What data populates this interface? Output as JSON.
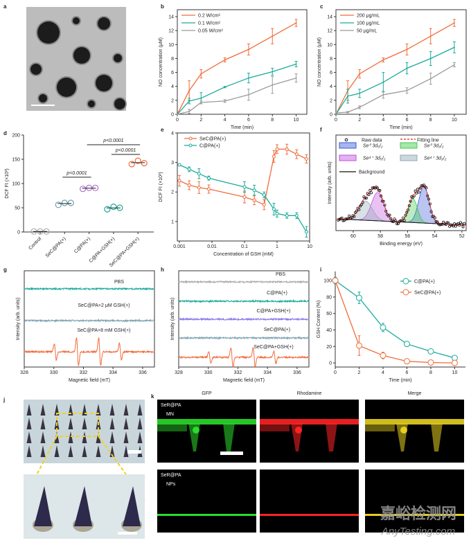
{
  "panel_labels": [
    "a",
    "b",
    "c",
    "d",
    "e",
    "f",
    "g",
    "h",
    "i",
    "j",
    "k"
  ],
  "colors": {
    "orange": "#f26b3a",
    "teal": "#1aaa9a",
    "grey": "#9a9a9a"
  },
  "chart_data": [
    {
      "panel": "b",
      "type": "line",
      "title": "",
      "xlabel": "Time (min)",
      "ylabel": "NO concentration (μM)",
      "xlim": [
        0,
        10.9
      ],
      "ylim": [
        0,
        15
      ],
      "xticks": [
        "0",
        "2",
        "4",
        "6",
        "8",
        "10"
      ],
      "yticks": [
        "0",
        "2",
        "4",
        "6",
        "8",
        "10",
        "12",
        "14"
      ],
      "legend_position": "top-left",
      "x": [
        0,
        1,
        2,
        4,
        6,
        8,
        10
      ],
      "series": [
        {
          "name": "0.2 W/cm²",
          "color": "#f26b3a",
          "y": [
            0,
            3.4,
            5.8,
            7.8,
            9.3,
            11.2,
            13.1
          ],
          "err": [
            0,
            1.4,
            0.6,
            0.3,
            0.8,
            1.1,
            0.5
          ]
        },
        {
          "name": "0.1 W/cm²",
          "color": "#1aaa9a",
          "y": [
            0,
            1.9,
            2.3,
            3.9,
            5.2,
            6.1,
            7.2
          ],
          "err": [
            0,
            0.4,
            0.8,
            0.1,
            0.7,
            0.5,
            0.4
          ]
        },
        {
          "name": "0.05 W/cm²",
          "color": "#9a9a9a",
          "y": [
            0,
            0.4,
            1.7,
            1.9,
            2.8,
            4.2,
            5.2
          ],
          "err": [
            0,
            0.3,
            0.2,
            0.2,
            0.8,
            1.2,
            0.6
          ]
        }
      ]
    },
    {
      "panel": "c",
      "type": "line",
      "title": "",
      "xlabel": "Time (min)",
      "ylabel": "NO concentration (μM)",
      "xlim": [
        0,
        11
      ],
      "ylim": [
        0,
        15
      ],
      "xticks": [
        "0",
        "2",
        "4",
        "6",
        "8",
        "10"
      ],
      "yticks": [
        "0",
        "2",
        "4",
        "6",
        "8",
        "10",
        "12",
        "14"
      ],
      "legend_position": "top-left",
      "x": [
        0,
        1,
        2,
        4,
        6,
        8,
        10
      ],
      "series": [
        {
          "name": "200 μg/mL",
          "color": "#f26b3a",
          "y": [
            0,
            3.4,
            5.8,
            7.8,
            9.3,
            11.2,
            13.1
          ],
          "err": [
            0,
            1.4,
            0.6,
            0.3,
            0.8,
            1.1,
            0.5
          ]
        },
        {
          "name": "100 μg/mL",
          "color": "#1aaa9a",
          "y": [
            0,
            2.6,
            3.0,
            4.6,
            6.6,
            8.0,
            9.6
          ],
          "err": [
            0,
            1.0,
            0.6,
            1.4,
            0.8,
            1.0,
            0.8
          ]
        },
        {
          "name": "50 μg/mL",
          "color": "#9a9a9a",
          "y": [
            0.2,
            0.3,
            1.0,
            2.8,
            3.4,
            5.1,
            7.1
          ],
          "err": [
            0,
            0.1,
            0.2,
            0.5,
            0.4,
            0.8,
            0.3
          ]
        }
      ]
    },
    {
      "panel": "d",
      "type": "scatter",
      "title": "",
      "xlabel": "",
      "ylabel": "DCF FI (×10³)",
      "ylim": [
        0,
        200
      ],
      "yticks": [
        "0",
        "50",
        "100",
        "150",
        "200"
      ],
      "categories": [
        "Control",
        "SeC@PA(+)",
        "C@PA(+)",
        "C@PA+GSH(+)",
        "SeC@PA+GSH(+)"
      ],
      "colors": [
        "#aaaaaa",
        "#6f9fb0",
        "#b070d0",
        "#1aaa9a",
        "#f26b3a"
      ],
      "values": [
        [
          1,
          1,
          1
        ],
        [
          56,
          60,
          60
        ],
        [
          89,
          91,
          91
        ],
        [
          47,
          52,
          50
        ],
        [
          140,
          147,
          142
        ]
      ],
      "annotations": [
        {
          "text": "p<0.0001",
          "from": 1,
          "to": 2,
          "y": 113
        },
        {
          "text": "p<0.0001",
          "from": 2,
          "to": 4,
          "y": 180
        },
        {
          "text": "p<0.0001",
          "from": 3,
          "to": 4,
          "y": 160
        }
      ]
    },
    {
      "panel": "e",
      "type": "line",
      "title": "",
      "xlabel": "Concentration of GSH (mM)",
      "ylabel": "DCF FI (×10³)",
      "xscale": "log",
      "xlim": [
        0.000863,
        10
      ],
      "ylim": [
        0.34,
        4
      ],
      "xticks": [
        "0.001",
        "0.01",
        "0.1",
        "1",
        "10"
      ],
      "yticks": [
        "1",
        "2",
        "3",
        "4"
      ],
      "legend_position": "top-left",
      "x": [
        0.001,
        0.002,
        0.004,
        0.008,
        0.1,
        0.2,
        0.4,
        0.8,
        1,
        2,
        4,
        8
      ],
      "series": [
        {
          "name": "SeC@PA(+)",
          "color": "#f26b3a",
          "y": [
            2.38,
            2.23,
            2.15,
            2.1,
            1.83,
            1.72,
            1.57,
            3.2,
            3.45,
            3.45,
            3.28,
            3.12
          ],
          "err": [
            0.18,
            0.15,
            0.2,
            0.14,
            0.2,
            0.15,
            0.17,
            0.2,
            0.15,
            0.17,
            0.15,
            0.14
          ]
        },
        {
          "name": "C@PA(+)",
          "color": "#1aaa9a",
          "y": [
            2.92,
            2.77,
            2.62,
            2.47,
            2.17,
            2.06,
            1.9,
            1.42,
            1.27,
            1.2,
            1.2,
            0.65
          ],
          "err": [
            0.03,
            0.08,
            0.17,
            0.07,
            0.18,
            0.17,
            0.1,
            0.2,
            0.12,
            0.09,
            0.1,
            0.18
          ]
        }
      ]
    },
    {
      "panel": "f",
      "type": "line",
      "title": "",
      "xlabel": "Binding energy (eV)",
      "ylabel": "Intensity (arb. units)",
      "xlim": [
        61.27,
        51.69
      ],
      "ylim": [
        0,
        1
      ],
      "xticks": [
        "60",
        "58",
        "56",
        "54",
        "52"
      ],
      "yticks": [],
      "legend": {
        "raw": "Raw data",
        "fit": "Fitting line",
        "background": "Background"
      },
      "peaks": [
        {
          "name": "Se⁰ 3d₅/₂",
          "center": 54.8,
          "height": 0.85,
          "width": 0.38,
          "color": "#3a5ad8"
        },
        {
          "name": "Se⁰ 3d₃/₂",
          "center": 55.6,
          "height": 0.55,
          "width": 0.33,
          "color": "#3cc84a"
        },
        {
          "name": "Se⁴⁺ 3d₅/₂",
          "center": 58.2,
          "height": 0.66,
          "width": 0.45,
          "color": "#c050e0"
        },
        {
          "name": "Se⁴⁺ 3d₃/₂",
          "center": 59.1,
          "height": 0.45,
          "width": 0.5,
          "color": "#8fa8b4"
        }
      ]
    },
    {
      "panel": "g",
      "type": "line",
      "title": "",
      "xlabel": "Magnetic field (mT)",
      "ylabel": "Intensity (arb. units)",
      "xlim": [
        328,
        336.8
      ],
      "xticks": [
        "328",
        "330",
        "332",
        "334",
        "336"
      ],
      "yticks": [],
      "signal_peaks_mT": [
        330.1,
        331.6,
        333.1,
        334.5
      ],
      "traces": [
        {
          "name": "PBS",
          "color": "#1aaa9a",
          "signal": 0
        },
        {
          "name": "SeC@PA+2 μM GSH(+)",
          "color": "#7aa0b0",
          "signal": 0
        },
        {
          "name": "SeC@PA+8 mM GSH(+)",
          "color": "#f26b3a",
          "signal": 1
        }
      ]
    },
    {
      "panel": "h",
      "type": "line",
      "title": "",
      "xlabel": "Magnetic field (mT)",
      "ylabel": "Intensity (arb. units)",
      "xlim": [
        328,
        336.8
      ],
      "xticks": [
        "328",
        "330",
        "332",
        "334",
        "336"
      ],
      "yticks": [],
      "signal_peaks_mT": [
        330.1,
        331.6,
        333.1,
        334.5
      ],
      "traces": [
        {
          "name": "PBS",
          "color": "#aaaaaa",
          "signal": 0
        },
        {
          "name": "C@PA(+)",
          "color": "#1aaa9a",
          "signal": 0
        },
        {
          "name": "C@PA+GSH(+)",
          "color": "#8a7ae8",
          "signal": 0
        },
        {
          "name": "SeC@PA(+)",
          "color": "#7aa0b0",
          "signal": 0
        },
        {
          "name": "SeC@PA+GSH(+)",
          "color": "#f26b3a",
          "signal": 0.7
        }
      ]
    },
    {
      "panel": "i",
      "type": "line",
      "title": "",
      "xlabel": "Time (min)",
      "ylabel": "GSH Content (%)",
      "xlim": [
        0,
        10.9
      ],
      "ylim": [
        -5,
        111
      ],
      "xticks": [
        "0",
        "2",
        "4",
        "6",
        "8",
        "10"
      ],
      "yticks": [
        "0",
        "20",
        "40",
        "60",
        "80",
        "100"
      ],
      "legend_position": "top-right",
      "x": [
        0,
        2,
        4,
        6,
        8,
        10
      ],
      "series": [
        {
          "name": "C@PA(+)",
          "color": "#1aaa9a",
          "y": [
            100,
            79,
            43,
            23,
            14,
            6
          ],
          "err": [
            4,
            7,
            5,
            3,
            2,
            1
          ]
        },
        {
          "name": "SeC@PA(+)",
          "color": "#f26b3a",
          "y": [
            100,
            21,
            9,
            2,
            0.5,
            0
          ],
          "err": [
            3,
            12,
            4,
            2,
            1,
            0.5
          ]
        }
      ]
    }
  ],
  "images": {
    "k": {
      "columns": [
        "GFP",
        "Rhodamine",
        "Merge"
      ],
      "column_colors": [
        "#2bdc2b",
        "#ff2424",
        "#e6d020"
      ],
      "rows": [
        [
          "SeR@PA",
          "MN"
        ],
        [
          "SeR@PA",
          "NPs"
        ]
      ]
    }
  },
  "watermark": {
    "cn": "嘉峪检测网",
    "en": "AnyTesting.com"
  }
}
